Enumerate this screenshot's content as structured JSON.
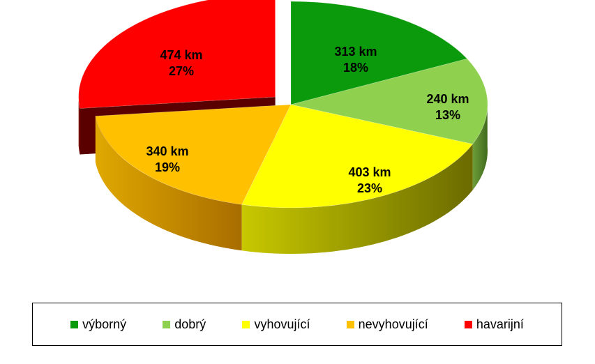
{
  "chart_data": {
    "type": "pie",
    "title": "",
    "legend_position": "bottom",
    "slices": [
      {
        "name": "výborný",
        "value": 313,
        "label": "313 km",
        "percent_label": "18%",
        "color": "#0b9a0b"
      },
      {
        "name": "dobrý",
        "value": 240,
        "label": "240 km",
        "percent_label": "13%",
        "color": "#8fd14f"
      },
      {
        "name": "vyhovující",
        "value": 403,
        "label": "403 km",
        "percent_label": "23%",
        "color": "#ffff00"
      },
      {
        "name": "nevyhovující",
        "value": 340,
        "label": "340 km",
        "percent_label": "19%",
        "color": "#ffc000"
      },
      {
        "name": "havarijní",
        "value": 474,
        "label": "474 km",
        "percent_label": "27%",
        "color": "#ff0000",
        "exploded": true
      }
    ]
  }
}
